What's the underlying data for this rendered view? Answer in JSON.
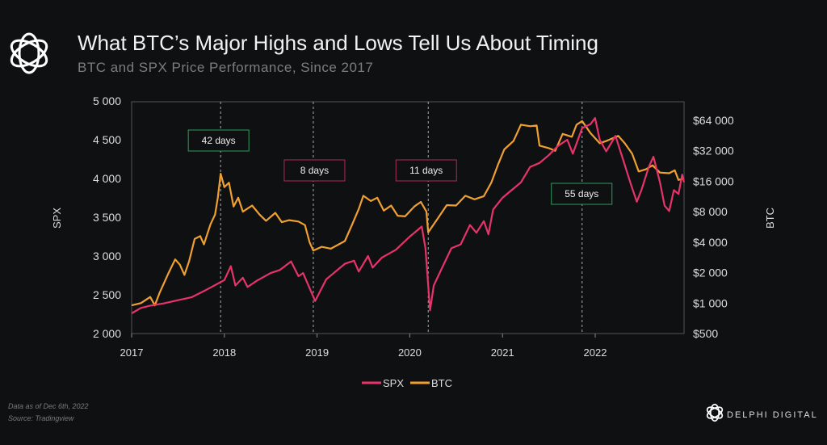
{
  "header": {
    "title": "What BTC’s Major Highs and Lows Tell Us About Timing",
    "subtitle": "BTC and SPX Price Performance, Since 2017"
  },
  "footer": {
    "note1": "Data as of Dec 6th, 2022",
    "note2": "Source: Tradingview",
    "brand": "DELPHI DIGITAL"
  },
  "colors": {
    "spx": "#e8336a",
    "btc": "#f0a030",
    "green": "#2e9e5e",
    "pink": "#b0284f"
  },
  "chart_data": {
    "type": "line",
    "title": "What BTC’s Major Highs and Lows Tell Us About Timing",
    "xlabel": "",
    "ylabel": "SPX",
    "y2label": "BTC",
    "xlim": [
      2017,
      2022.96
    ],
    "ylim": [
      2000,
      5000
    ],
    "y2lim": [
      500,
      64000
    ],
    "y2scale": "log2",
    "x_ticks": [
      "2017",
      "2018",
      "2019",
      "2020",
      "2021",
      "2022"
    ],
    "y_ticks": [
      "2 000",
      "2 500",
      "3 000",
      "3 500",
      "4 000",
      "4 500",
      "5 000"
    ],
    "y2_ticks": [
      "$500",
      "$1 000",
      "$2 000",
      "$4 000",
      "$8 000",
      "$16 000",
      "$32 000",
      "$64 000"
    ],
    "legend": {
      "placement": "bottom-center",
      "entries": [
        "SPX",
        "BTC"
      ]
    },
    "series": [
      {
        "name": "SPX",
        "axis": "left",
        "points": [
          [
            2017.0,
            2260
          ],
          [
            2017.1,
            2330
          ],
          [
            2017.2,
            2360
          ],
          [
            2017.35,
            2390
          ],
          [
            2017.5,
            2430
          ],
          [
            2017.65,
            2470
          ],
          [
            2017.8,
            2560
          ],
          [
            2018.0,
            2690
          ],
          [
            2018.07,
            2870
          ],
          [
            2018.12,
            2620
          ],
          [
            2018.2,
            2720
          ],
          [
            2018.25,
            2600
          ],
          [
            2018.35,
            2680
          ],
          [
            2018.5,
            2780
          ],
          [
            2018.6,
            2820
          ],
          [
            2018.72,
            2930
          ],
          [
            2018.8,
            2740
          ],
          [
            2018.85,
            2780
          ],
          [
            2018.9,
            2640
          ],
          [
            2018.98,
            2420
          ],
          [
            2019.1,
            2700
          ],
          [
            2019.3,
            2900
          ],
          [
            2019.4,
            2940
          ],
          [
            2019.45,
            2800
          ],
          [
            2019.55,
            3000
          ],
          [
            2019.6,
            2850
          ],
          [
            2019.7,
            2980
          ],
          [
            2019.85,
            3080
          ],
          [
            2020.0,
            3250
          ],
          [
            2020.13,
            3380
          ],
          [
            2020.17,
            3100
          ],
          [
            2020.22,
            2300
          ],
          [
            2020.26,
            2620
          ],
          [
            2020.35,
            2850
          ],
          [
            2020.45,
            3100
          ],
          [
            2020.55,
            3150
          ],
          [
            2020.65,
            3400
          ],
          [
            2020.72,
            3300
          ],
          [
            2020.8,
            3450
          ],
          [
            2020.85,
            3280
          ],
          [
            2020.9,
            3600
          ],
          [
            2021.0,
            3750
          ],
          [
            2021.1,
            3850
          ],
          [
            2021.2,
            3950
          ],
          [
            2021.3,
            4150
          ],
          [
            2021.4,
            4200
          ],
          [
            2021.5,
            4300
          ],
          [
            2021.6,
            4420
          ],
          [
            2021.7,
            4500
          ],
          [
            2021.76,
            4320
          ],
          [
            2021.86,
            4650
          ],
          [
            2021.95,
            4700
          ],
          [
            2022.0,
            4780
          ],
          [
            2022.05,
            4500
          ],
          [
            2022.12,
            4350
          ],
          [
            2022.22,
            4550
          ],
          [
            2022.3,
            4250
          ],
          [
            2022.38,
            3950
          ],
          [
            2022.45,
            3700
          ],
          [
            2022.5,
            3850
          ],
          [
            2022.58,
            4150
          ],
          [
            2022.63,
            4280
          ],
          [
            2022.7,
            3950
          ],
          [
            2022.75,
            3650
          ],
          [
            2022.8,
            3580
          ],
          [
            2022.85,
            3850
          ],
          [
            2022.9,
            3800
          ],
          [
            2022.94,
            4050
          ],
          [
            2022.96,
            3950
          ]
        ]
      },
      {
        "name": "BTC",
        "axis": "right",
        "points": [
          [
            2017.0,
            950
          ],
          [
            2017.1,
            1000
          ],
          [
            2017.2,
            1150
          ],
          [
            2017.25,
            950
          ],
          [
            2017.3,
            1250
          ],
          [
            2017.4,
            2000
          ],
          [
            2017.47,
            2700
          ],
          [
            2017.52,
            2400
          ],
          [
            2017.57,
            1900
          ],
          [
            2017.62,
            2600
          ],
          [
            2017.68,
            4300
          ],
          [
            2017.74,
            4600
          ],
          [
            2017.78,
            3800
          ],
          [
            2017.85,
            6000
          ],
          [
            2017.9,
            7500
          ],
          [
            2017.93,
            11000
          ],
          [
            2017.96,
            19000
          ],
          [
            2018.0,
            14000
          ],
          [
            2018.05,
            15500
          ],
          [
            2018.1,
            9000
          ],
          [
            2018.15,
            11000
          ],
          [
            2018.2,
            8000
          ],
          [
            2018.3,
            9200
          ],
          [
            2018.38,
            7500
          ],
          [
            2018.45,
            6500
          ],
          [
            2018.55,
            7800
          ],
          [
            2018.62,
            6300
          ],
          [
            2018.7,
            6600
          ],
          [
            2018.8,
            6400
          ],
          [
            2018.87,
            5900
          ],
          [
            2018.92,
            4000
          ],
          [
            2018.96,
            3300
          ],
          [
            2019.05,
            3600
          ],
          [
            2019.15,
            3450
          ],
          [
            2019.3,
            4100
          ],
          [
            2019.38,
            6000
          ],
          [
            2019.45,
            8500
          ],
          [
            2019.5,
            11500
          ],
          [
            2019.58,
            10200
          ],
          [
            2019.65,
            11000
          ],
          [
            2019.72,
            8200
          ],
          [
            2019.8,
            9200
          ],
          [
            2019.87,
            7300
          ],
          [
            2019.95,
            7200
          ],
          [
            2020.05,
            9000
          ],
          [
            2020.12,
            10000
          ],
          [
            2020.18,
            8000
          ],
          [
            2020.2,
            5000
          ],
          [
            2020.3,
            6800
          ],
          [
            2020.4,
            9300
          ],
          [
            2020.5,
            9200
          ],
          [
            2020.6,
            11500
          ],
          [
            2020.7,
            10600
          ],
          [
            2020.8,
            11400
          ],
          [
            2020.88,
            15500
          ],
          [
            2020.95,
            23000
          ],
          [
            2021.02,
            33000
          ],
          [
            2021.12,
            40000
          ],
          [
            2021.2,
            58000
          ],
          [
            2021.3,
            56000
          ],
          [
            2021.37,
            57000
          ],
          [
            2021.4,
            36000
          ],
          [
            2021.5,
            34000
          ],
          [
            2021.57,
            32000
          ],
          [
            2021.65,
            47000
          ],
          [
            2021.75,
            44000
          ],
          [
            2021.8,
            58000
          ],
          [
            2021.86,
            63000
          ],
          [
            2021.95,
            48000
          ],
          [
            2022.05,
            38000
          ],
          [
            2022.12,
            40000
          ],
          [
            2022.25,
            45000
          ],
          [
            2022.32,
            38000
          ],
          [
            2022.4,
            30000
          ],
          [
            2022.47,
            20000
          ],
          [
            2022.55,
            21000
          ],
          [
            2022.62,
            23000
          ],
          [
            2022.7,
            19500
          ],
          [
            2022.8,
            19200
          ],
          [
            2022.86,
            20500
          ],
          [
            2022.9,
            16500
          ],
          [
            2022.96,
            17000
          ]
        ]
      }
    ],
    "annotations": [
      {
        "label": "42 days",
        "x": 2017.96,
        "color": "green"
      },
      {
        "label": "8 days",
        "x": 2018.96,
        "color": "pink"
      },
      {
        "label": "11 days",
        "x": 2020.2,
        "color": "pink"
      },
      {
        "label": "55 days",
        "x": 2021.86,
        "color": "green"
      }
    ]
  }
}
